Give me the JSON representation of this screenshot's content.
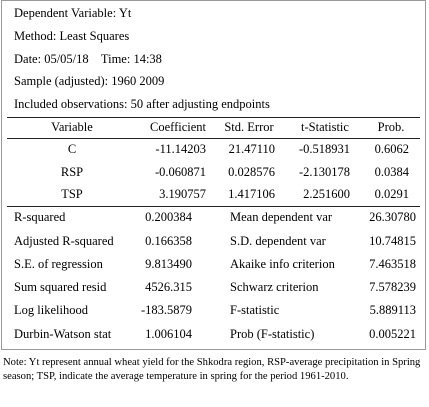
{
  "header": {
    "dep_var": "Dependent Variable: Yt",
    "method": "Method: Least Squares",
    "date_time": "Date: 05/05/18    Time: 14:38",
    "sample": "Sample (adjusted): 1960 2009",
    "obs": "Included observations: 50 after adjusting endpoints"
  },
  "coef_table": {
    "columns": [
      "Variable",
      "Coefficient",
      "Std. Error",
      "t-Statistic",
      "Prob."
    ],
    "rows": [
      [
        "C",
        "-11.14203",
        "21.47110",
        "-0.518931",
        "0.6062"
      ],
      [
        "RSP",
        "-0.060871",
        "0.028576",
        "-2.130178",
        "0.0384"
      ],
      [
        "TSP",
        "3.190757",
        "1.417106",
        "2.251600",
        "0.0291"
      ]
    ]
  },
  "stats": [
    [
      "R-squared",
      "0.200384",
      "Mean dependent var",
      "26.30780"
    ],
    [
      "Adjusted R-squared",
      "0.166358",
      "S.D. dependent var",
      "10.74815"
    ],
    [
      "S.E. of regression",
      "9.813490",
      "Akaike info criterion",
      "7.463518"
    ],
    [
      "Sum squared resid",
      "4526.315",
      "Schwarz criterion",
      "7.578239"
    ],
    [
      "Log likelihood",
      "-183.5879",
      "F-statistic",
      "5.889113"
    ],
    [
      "Durbin-Watson stat",
      "1.006104",
      "Prob (F-statistic)",
      "0.005221"
    ]
  ],
  "note": "Note: Yt represent annual wheat yield for the Shkodra region, RSP-average precipitation in Spring season; TSP, indicate the average temperature in spring for the period 1961-2010."
}
